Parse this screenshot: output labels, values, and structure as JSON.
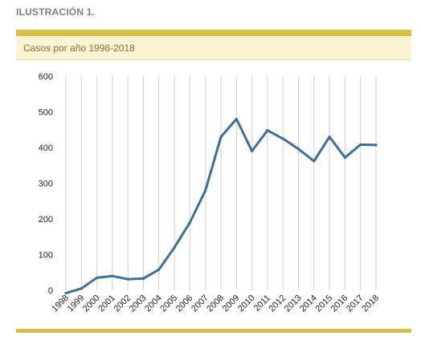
{
  "figure_label": "ILUSTRACIÓN 1.",
  "header_title": "Casos por año 1998-2018",
  "colors": {
    "accent_bar": "#d7bf48",
    "header_bg": "#fbf3d2",
    "line": "#3d6f9a",
    "grid": "#d0d0d0"
  },
  "chart_data": {
    "type": "line",
    "title": "Casos por año 1998-2018",
    "xlabel": "",
    "ylabel": "",
    "ylim": [
      0,
      600
    ],
    "yticks": [
      0,
      100,
      200,
      300,
      400,
      500,
      600
    ],
    "grid": "vertical",
    "legend": "none",
    "x": [
      "1998",
      "1999",
      "2000",
      "2001",
      "2002",
      "2003",
      "2004",
      "2005",
      "2006",
      "2007",
      "2008",
      "2009",
      "2010",
      "2011",
      "2012",
      "2013",
      "2014",
      "2015",
      "2016",
      "2017",
      "2018"
    ],
    "series": [
      {
        "values": [
          -8,
          5,
          35,
          40,
          31,
          33,
          58,
          120,
          190,
          280,
          430,
          480,
          390,
          448,
          425,
          396,
          362,
          430,
          372,
          408,
          407
        ]
      }
    ]
  }
}
